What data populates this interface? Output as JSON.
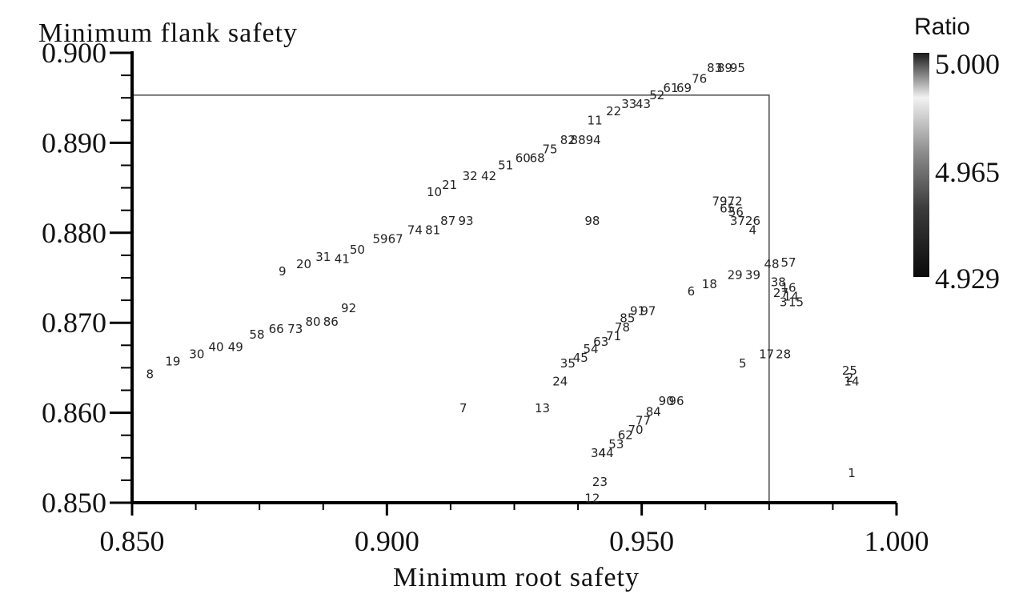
{
  "chart_data": {
    "type": "scatter",
    "xlabel": "Minimum root safety",
    "ylabel": "Minimum flank safety",
    "xlim": [
      0.85,
      1.0
    ],
    "ylim": [
      0.85,
      0.9
    ],
    "x_ticks": [
      "0.850",
      "0.900",
      "0.950",
      "1.000"
    ],
    "y_ticks": [
      "0.850",
      "0.860",
      "0.870",
      "0.880",
      "0.890",
      "0.900"
    ],
    "grid": false,
    "boundary_box": {
      "x": [
        0.85,
        0.975
      ],
      "y": [
        0.85,
        0.8953
      ]
    },
    "colorbar": {
      "title": "Ratio",
      "min": 4.929,
      "max": 5.0,
      "tick_labels": [
        "5.000",
        "4.965",
        "4.929"
      ]
    },
    "points": [
      {
        "label": "8",
        "x": 0.8535,
        "y": 0.8643
      },
      {
        "label": "19",
        "x": 0.858,
        "y": 0.8657
      },
      {
        "label": "30",
        "x": 0.8627,
        "y": 0.8665
      },
      {
        "label": "40",
        "x": 0.8665,
        "y": 0.8673
      },
      {
        "label": "49",
        "x": 0.8703,
        "y": 0.8673
      },
      {
        "label": "58",
        "x": 0.8745,
        "y": 0.8687
      },
      {
        "label": "66",
        "x": 0.8783,
        "y": 0.8693
      },
      {
        "label": "73",
        "x": 0.882,
        "y": 0.8693
      },
      {
        "label": "80",
        "x": 0.8855,
        "y": 0.8701
      },
      {
        "label": "86",
        "x": 0.889,
        "y": 0.8701
      },
      {
        "label": "92",
        "x": 0.8925,
        "y": 0.8716
      },
      {
        "label": "9",
        "x": 0.8795,
        "y": 0.8757
      },
      {
        "label": "20",
        "x": 0.8837,
        "y": 0.8765
      },
      {
        "label": "31",
        "x": 0.8875,
        "y": 0.8773
      },
      {
        "label": "41",
        "x": 0.8912,
        "y": 0.8771
      },
      {
        "label": "50",
        "x": 0.8942,
        "y": 0.8781
      },
      {
        "label": "59",
        "x": 0.8987,
        "y": 0.8793
      },
      {
        "label": "67",
        "x": 0.9017,
        "y": 0.8793
      },
      {
        "label": "74",
        "x": 0.9055,
        "y": 0.8803
      },
      {
        "label": "81",
        "x": 0.909,
        "y": 0.8803
      },
      {
        "label": "87",
        "x": 0.912,
        "y": 0.8813
      },
      {
        "label": "93",
        "x": 0.9155,
        "y": 0.8813
      },
      {
        "label": "10",
        "x": 0.9093,
        "y": 0.8845
      },
      {
        "label": "21",
        "x": 0.9123,
        "y": 0.8853
      },
      {
        "label": "32",
        "x": 0.9163,
        "y": 0.8863
      },
      {
        "label": "42",
        "x": 0.92,
        "y": 0.8863
      },
      {
        "label": "51",
        "x": 0.9233,
        "y": 0.8875
      },
      {
        "label": "60",
        "x": 0.9267,
        "y": 0.8883
      },
      {
        "label": "68",
        "x": 0.9295,
        "y": 0.8883
      },
      {
        "label": "75",
        "x": 0.932,
        "y": 0.8893
      },
      {
        "label": "82",
        "x": 0.9355,
        "y": 0.8903
      },
      {
        "label": "88",
        "x": 0.9375,
        "y": 0.8903
      },
      {
        "label": "94",
        "x": 0.9405,
        "y": 0.8903
      },
      {
        "label": "11",
        "x": 0.9408,
        "y": 0.8925
      },
      {
        "label": "22",
        "x": 0.9445,
        "y": 0.8935
      },
      {
        "label": "33",
        "x": 0.9475,
        "y": 0.8943
      },
      {
        "label": "43",
        "x": 0.9503,
        "y": 0.8943
      },
      {
        "label": "52",
        "x": 0.953,
        "y": 0.8953
      },
      {
        "label": "61",
        "x": 0.9557,
        "y": 0.8961
      },
      {
        "label": "69",
        "x": 0.9583,
        "y": 0.8961
      },
      {
        "label": "76",
        "x": 0.9613,
        "y": 0.8971
      },
      {
        "label": "83",
        "x": 0.9643,
        "y": 0.8983
      },
      {
        "label": "89",
        "x": 0.9663,
        "y": 0.8983
      },
      {
        "label": "95",
        "x": 0.9688,
        "y": 0.8983
      },
      {
        "label": "98",
        "x": 0.9403,
        "y": 0.8813
      },
      {
        "label": "7",
        "x": 0.915,
        "y": 0.8605
      },
      {
        "label": "13",
        "x": 0.9305,
        "y": 0.8605
      },
      {
        "label": "24",
        "x": 0.934,
        "y": 0.8635
      },
      {
        "label": "35",
        "x": 0.9355,
        "y": 0.8655
      },
      {
        "label": "45",
        "x": 0.938,
        "y": 0.8661
      },
      {
        "label": "54",
        "x": 0.94,
        "y": 0.8671
      },
      {
        "label": "63",
        "x": 0.942,
        "y": 0.8679
      },
      {
        "label": "71",
        "x": 0.9445,
        "y": 0.8685
      },
      {
        "label": "78",
        "x": 0.9462,
        "y": 0.8695
      },
      {
        "label": "85",
        "x": 0.9472,
        "y": 0.8705
      },
      {
        "label": "91",
        "x": 0.9492,
        "y": 0.8713
      },
      {
        "label": "97",
        "x": 0.9513,
        "y": 0.8713
      },
      {
        "label": "34",
        "x": 0.9415,
        "y": 0.8555
      },
      {
        "label": "44",
        "x": 0.943,
        "y": 0.8555
      },
      {
        "label": "53",
        "x": 0.945,
        "y": 0.8565
      },
      {
        "label": "62",
        "x": 0.9468,
        "y": 0.8575
      },
      {
        "label": "70",
        "x": 0.9488,
        "y": 0.8581
      },
      {
        "label": "77",
        "x": 0.9503,
        "y": 0.8591
      },
      {
        "label": "84",
        "x": 0.9523,
        "y": 0.8601
      },
      {
        "label": "90",
        "x": 0.9548,
        "y": 0.8613
      },
      {
        "label": "96",
        "x": 0.9568,
        "y": 0.8613
      },
      {
        "label": "23",
        "x": 0.9418,
        "y": 0.8523
      },
      {
        "label": "12",
        "x": 0.9403,
        "y": 0.8505
      },
      {
        "label": "6",
        "x": 0.9597,
        "y": 0.8735
      },
      {
        "label": "18",
        "x": 0.9633,
        "y": 0.8743
      },
      {
        "label": "29",
        "x": 0.9683,
        "y": 0.8753
      },
      {
        "label": "39",
        "x": 0.9718,
        "y": 0.8753
      },
      {
        "label": "48",
        "x": 0.9755,
        "y": 0.8765
      },
      {
        "label": "57",
        "x": 0.9788,
        "y": 0.8767
      },
      {
        "label": "5",
        "x": 0.9698,
        "y": 0.8655
      },
      {
        "label": "17",
        "x": 0.9745,
        "y": 0.8665
      },
      {
        "label": "28",
        "x": 0.9778,
        "y": 0.8665
      },
      {
        "label": "79",
        "x": 0.9653,
        "y": 0.8835
      },
      {
        "label": "72",
        "x": 0.9683,
        "y": 0.8835
      },
      {
        "label": "65",
        "x": 0.9668,
        "y": 0.8827
      },
      {
        "label": "56",
        "x": 0.9685,
        "y": 0.8823
      },
      {
        "label": "37",
        "x": 0.9688,
        "y": 0.8813
      },
      {
        "label": "26",
        "x": 0.9718,
        "y": 0.8813
      },
      {
        "label": "4",
        "x": 0.9718,
        "y": 0.8803
      },
      {
        "label": "38",
        "x": 0.9768,
        "y": 0.8745
      },
      {
        "label": "16",
        "x": 0.9788,
        "y": 0.8739
      },
      {
        "label": "27",
        "x": 0.9773,
        "y": 0.8733
      },
      {
        "label": "14",
        "x": 0.9793,
        "y": 0.8729
      },
      {
        "label": "3",
        "x": 0.9778,
        "y": 0.8723
      },
      {
        "label": "15",
        "x": 0.9803,
        "y": 0.8723
      },
      {
        "label": "25",
        "x": 0.9908,
        "y": 0.8647
      },
      {
        "label": "2",
        "x": 0.9908,
        "y": 0.8639
      },
      {
        "label": "14",
        "x": 0.9912,
        "y": 0.8635
      },
      {
        "label": "1",
        "x": 0.9912,
        "y": 0.8533
      }
    ]
  }
}
